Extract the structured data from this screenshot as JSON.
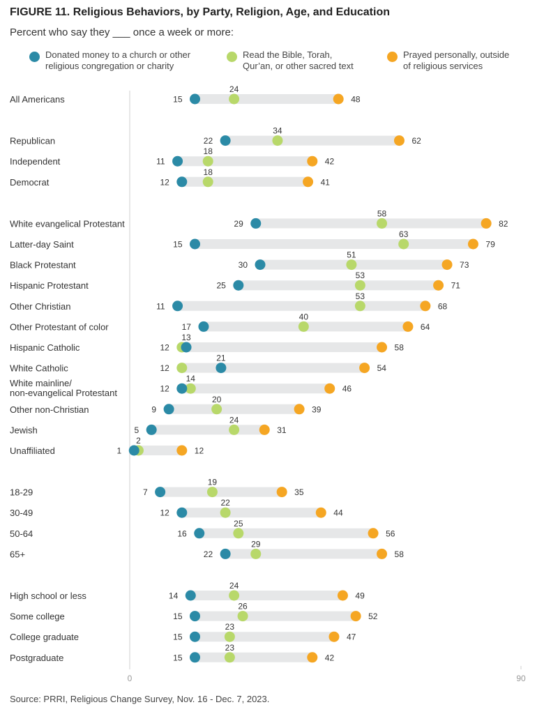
{
  "title": "FIGURE 11. Religious Behaviors, by Party, Religion, Age, and Education",
  "subtitle": "Percent who say they ___ once a week or more:",
  "source": "Source: PRRI, Religious Change Survey, Nov. 16 - Dec. 7, 2023.",
  "colors": {
    "donated": "#2b8aa6",
    "read": "#b8d86a",
    "prayed": "#f5a623",
    "bar": "#e6e7e8"
  },
  "legend": [
    {
      "key": "donated",
      "label_line1": "Donated money to a church or other",
      "label_line2": "religious congregation or charity"
    },
    {
      "key": "read",
      "label_line1": "Read the Bible, Torah,",
      "label_line2": "Qur’an, or other sacred text"
    },
    {
      "key": "prayed",
      "label_line1": "Prayed personally, outside",
      "label_line2": "of religious services"
    }
  ],
  "chart_data": {
    "type": "dot-range",
    "x_range": [
      0,
      90
    ],
    "x_ticks": [
      "0",
      "90"
    ],
    "series": [
      "Donated money to a church or other religious congregation or charity",
      "Read the Bible, Torah, Qur’an, or other sacred text",
      "Prayed personally, outside of religious services"
    ],
    "groups": [
      {
        "rows": [
          {
            "label": "All Americans",
            "donated": 15,
            "read": 24,
            "prayed": 48
          }
        ]
      },
      {
        "rows": [
          {
            "label": "Republican",
            "donated": 22,
            "read": 34,
            "prayed": 62
          },
          {
            "label": "Independent",
            "donated": 11,
            "read": 18,
            "prayed": 42
          },
          {
            "label": "Democrat",
            "donated": 12,
            "read": 18,
            "prayed": 41
          }
        ]
      },
      {
        "rows": [
          {
            "label": "White evangelical Protestant",
            "donated": 29,
            "read": 58,
            "prayed": 82
          },
          {
            "label": "Latter-day Saint",
            "donated": 15,
            "read": 63,
            "prayed": 79
          },
          {
            "label": "Black Protestant",
            "donated": 30,
            "read": 51,
            "prayed": 73
          },
          {
            "label": "Hispanic Protestant",
            "donated": 25,
            "read": 53,
            "prayed": 71
          },
          {
            "label": "Other Christian",
            "donated": 11,
            "read": 53,
            "prayed": 68
          },
          {
            "label": "Other Protestant of color",
            "donated": 17,
            "read": 40,
            "prayed": 64
          },
          {
            "label": "Hispanic Catholic",
            "donated": 13,
            "read": 12,
            "prayed": 58
          },
          {
            "label": "White Catholic",
            "donated": 21,
            "read": 12,
            "prayed": 54
          },
          {
            "label": "White mainline/",
            "label2": "non-evangelical Protestant",
            "donated": 12,
            "read": 14,
            "prayed": 46
          },
          {
            "label": "Other non-Christian",
            "donated": 9,
            "read": 20,
            "prayed": 39
          },
          {
            "label": "Jewish",
            "donated": 5,
            "read": 24,
            "prayed": 31
          },
          {
            "label": "Unaffiliated",
            "donated": 1,
            "read": 2,
            "prayed": 12
          }
        ]
      },
      {
        "rows": [
          {
            "label": "18-29",
            "donated": 7,
            "read": 19,
            "prayed": 35
          },
          {
            "label": "30-49",
            "donated": 12,
            "read": 22,
            "prayed": 44
          },
          {
            "label": "50-64",
            "donated": 16,
            "read": 25,
            "prayed": 56
          },
          {
            "label": "65+",
            "donated": 22,
            "read": 29,
            "prayed": 58
          }
        ]
      },
      {
        "rows": [
          {
            "label": "High school or less",
            "donated": 14,
            "read": 24,
            "prayed": 49
          },
          {
            "label": "Some college",
            "donated": 15,
            "read": 26,
            "prayed": 52
          },
          {
            "label": "College graduate",
            "donated": 15,
            "read": 23,
            "prayed": 47
          },
          {
            "label": "Postgraduate",
            "donated": 15,
            "read": 23,
            "prayed": 42
          }
        ]
      }
    ]
  }
}
